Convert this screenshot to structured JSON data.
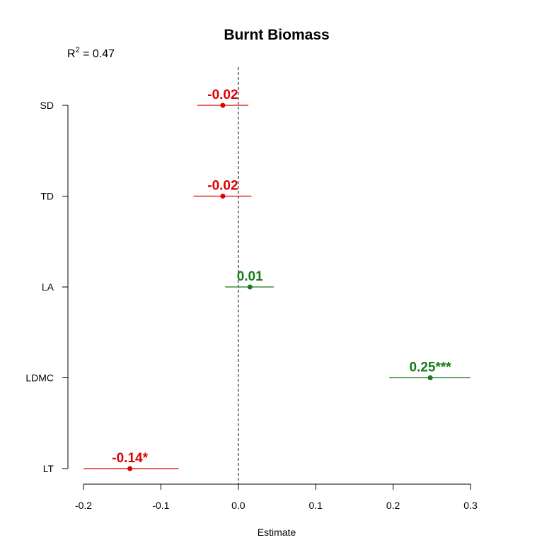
{
  "chart_data": {
    "type": "scatter",
    "title": "Burnt Biomass",
    "r2": {
      "label": "R",
      "sup": "2",
      "value_text": " = 0.47"
    },
    "xlabel": "Estimate",
    "ylabel": "",
    "xlim": [
      -0.2,
      0.3
    ],
    "xticks": [
      "-0.2",
      "-0.1",
      "0.0",
      "0.1",
      "0.2",
      "0.3"
    ],
    "reference_line": 0,
    "grid": false,
    "colors": {
      "negative": "#dd0000",
      "positive": "#1a7a1a"
    },
    "series": [
      {
        "category": "SD",
        "estimate": -0.02,
        "ci_low": -0.053,
        "ci_high": 0.013,
        "label": "-0.02",
        "sign": "negative"
      },
      {
        "category": "TD",
        "estimate": -0.02,
        "ci_low": -0.058,
        "ci_high": 0.017,
        "label": "-0.02",
        "sign": "negative"
      },
      {
        "category": "LA",
        "estimate": 0.015,
        "ci_low": -0.017,
        "ci_high": 0.046,
        "label": "0.01",
        "sign": "positive"
      },
      {
        "category": "LDMC",
        "estimate": 0.248,
        "ci_low": 0.195,
        "ci_high": 0.3,
        "label": "0.25***",
        "sign": "positive"
      },
      {
        "category": "LT",
        "estimate": -0.14,
        "ci_low": -0.2,
        "ci_high": -0.077,
        "label": "-0.14*",
        "sign": "negative"
      }
    ]
  }
}
